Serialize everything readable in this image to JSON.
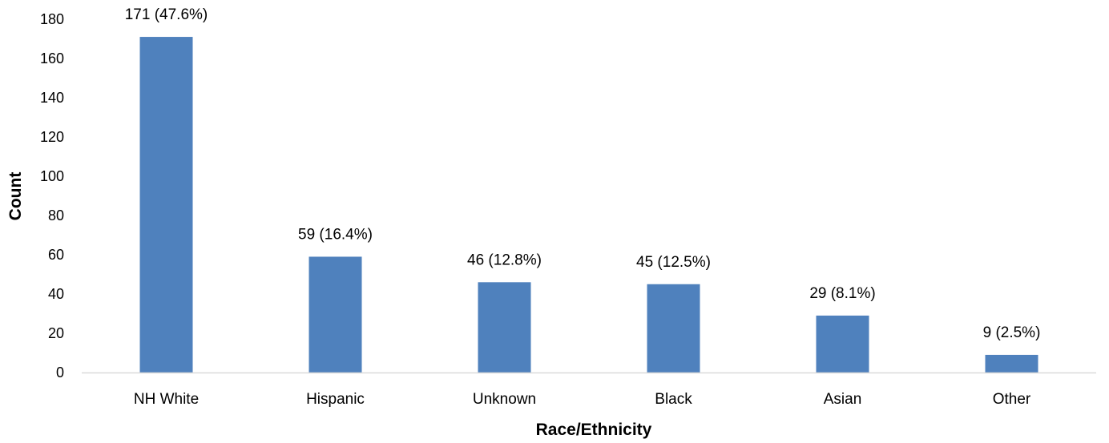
{
  "chart_data": {
    "type": "bar",
    "title": "",
    "xlabel": "Race/Ethnicity",
    "ylabel": "Count",
    "categories": [
      "NH White",
      "Hispanic",
      "Unknown",
      "Black",
      "Asian",
      "Other"
    ],
    "values": [
      171,
      59,
      46,
      45,
      29,
      9
    ],
    "data_labels": [
      "171 (47.6%)",
      "59 (16.4%)",
      "46 (12.8%)",
      "45 (12.5%)",
      "29 (8.1%)",
      "9 (2.5%)"
    ],
    "ylim": [
      0,
      180
    ],
    "yticks": [
      0,
      20,
      40,
      60,
      80,
      100,
      120,
      140,
      160,
      180
    ],
    "grid": false,
    "legend": "none",
    "bar_color": "#4F81BD",
    "axis_color": "#D9D9D9"
  }
}
